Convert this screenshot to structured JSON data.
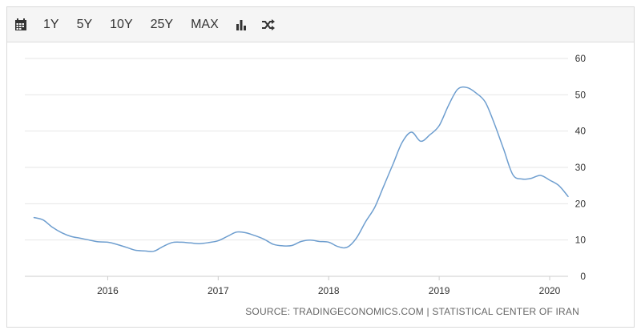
{
  "toolbar": {
    "buttons": [
      {
        "name": "calendar-icon-button",
        "icon": "calendar-icon"
      },
      {
        "name": "range-1y-button",
        "label": "1Y"
      },
      {
        "name": "range-5y-button",
        "label": "5Y"
      },
      {
        "name": "range-10y-button",
        "label": "10Y"
      },
      {
        "name": "range-25y-button",
        "label": "25Y"
      },
      {
        "name": "range-max-button",
        "label": "MAX"
      },
      {
        "name": "bar-chart-button",
        "icon": "bar-chart-icon"
      },
      {
        "name": "compare-button",
        "icon": "shuffle-icon"
      }
    ]
  },
  "colors": {
    "line": "#6e9ecf",
    "grid": "#e6e6e6",
    "text": "#333333"
  },
  "chart_data": {
    "type": "line",
    "title": "",
    "xlabel": "",
    "ylabel": "",
    "ylim": [
      0,
      60
    ],
    "xlim": [
      "2015-04",
      "2020-03"
    ],
    "y_ticks": [
      0,
      10,
      20,
      30,
      40,
      50,
      60
    ],
    "x_ticks": [
      "2016",
      "2017",
      "2018",
      "2019",
      "2020"
    ],
    "grid": true,
    "y_axis_side": "right",
    "series": [
      {
        "points": [
          [
            "2015-05",
            16.2
          ],
          [
            "2015-06",
            15.5
          ],
          [
            "2015-07",
            13.5
          ],
          [
            "2015-08",
            12.0
          ],
          [
            "2015-09",
            11.0
          ],
          [
            "2015-10",
            10.5
          ],
          [
            "2015-11",
            10.0
          ],
          [
            "2015-12",
            9.5
          ],
          [
            "2016-01",
            9.4
          ],
          [
            "2016-02",
            8.8
          ],
          [
            "2016-03",
            8.0
          ],
          [
            "2016-04",
            7.2
          ],
          [
            "2016-05",
            7.0
          ],
          [
            "2016-06",
            6.9
          ],
          [
            "2016-07",
            8.2
          ],
          [
            "2016-08",
            9.3
          ],
          [
            "2016-09",
            9.4
          ],
          [
            "2016-10",
            9.2
          ],
          [
            "2016-11",
            9.0
          ],
          [
            "2016-12",
            9.3
          ],
          [
            "2017-01",
            9.8
          ],
          [
            "2017-02",
            11.0
          ],
          [
            "2017-03",
            12.2
          ],
          [
            "2017-04",
            12.0
          ],
          [
            "2017-05",
            11.2
          ],
          [
            "2017-06",
            10.2
          ],
          [
            "2017-07",
            8.8
          ],
          [
            "2017-08",
            8.4
          ],
          [
            "2017-09",
            8.5
          ],
          [
            "2017-10",
            9.6
          ],
          [
            "2017-11",
            10.0
          ],
          [
            "2017-12",
            9.6
          ],
          [
            "2018-01",
            9.4
          ],
          [
            "2018-02",
            8.2
          ],
          [
            "2018-03",
            8.0
          ],
          [
            "2018-04",
            10.5
          ],
          [
            "2018-05",
            15.0
          ],
          [
            "2018-06",
            19.0
          ],
          [
            "2018-07",
            25.0
          ],
          [
            "2018-08",
            31.0
          ],
          [
            "2018-09",
            37.0
          ],
          [
            "2018-10",
            39.7
          ],
          [
            "2018-11",
            37.2
          ],
          [
            "2018-12",
            39.0
          ],
          [
            "2019-01",
            41.5
          ],
          [
            "2019-02",
            47.0
          ],
          [
            "2019-03",
            51.5
          ],
          [
            "2019-04",
            52.0
          ],
          [
            "2019-05",
            50.5
          ],
          [
            "2019-06",
            48.0
          ],
          [
            "2019-07",
            42.0
          ],
          [
            "2019-08",
            35.0
          ],
          [
            "2019-09",
            28.0
          ],
          [
            "2019-10",
            26.8
          ],
          [
            "2019-11",
            27.0
          ],
          [
            "2019-12",
            27.8
          ],
          [
            "2020-01",
            26.5
          ],
          [
            "2020-02",
            25.0
          ],
          [
            "2020-03",
            22.0
          ]
        ]
      }
    ]
  },
  "footer": {
    "source": "SOURCE: TRADINGECONOMICS.COM | STATISTICAL CENTER OF IRAN"
  }
}
